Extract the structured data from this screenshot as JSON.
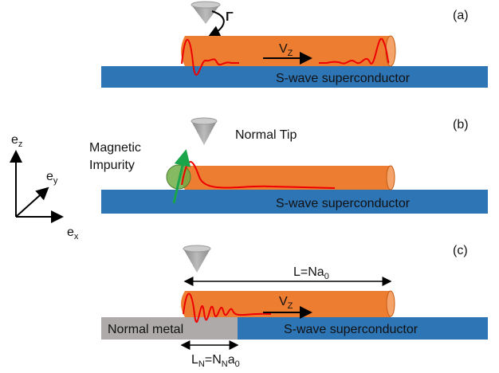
{
  "axes": {
    "ez": {
      "base": "e",
      "sub": "z"
    },
    "ey": {
      "base": "e",
      "sub": "y"
    },
    "ex": {
      "base": "e",
      "sub": "x"
    }
  },
  "panels": [
    {
      "label": "(a)",
      "tunneling": "Γ",
      "field": {
        "base": "V",
        "sub": "Z"
      },
      "substrate": "S-wave superconductor"
    },
    {
      "label": "(b)",
      "tip": "Normal Tip",
      "impurity": [
        "Magnetic",
        "Impurity"
      ],
      "substrate": "S-wave superconductor"
    },
    {
      "label": "(c)",
      "length": {
        "base": "L=Na",
        "sub": "0"
      },
      "field": {
        "base": "V",
        "sub": "Z"
      },
      "metal": "Normal metal",
      "substrate": "S-wave superconductor",
      "normal_length": [
        "L",
        "N",
        "=N",
        "N",
        "a",
        "0"
      ]
    }
  ]
}
